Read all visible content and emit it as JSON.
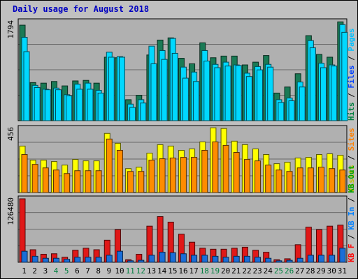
{
  "chart_data": {
    "type": "bar",
    "title": "Daily usage for August 2018",
    "categories": [
      "1",
      "2",
      "3",
      "4",
      "5",
      "6",
      "7",
      "8",
      "9",
      "10",
      "11",
      "12",
      "13",
      "14",
      "15",
      "16",
      "17",
      "18",
      "19",
      "20",
      "21",
      "22",
      "23",
      "24",
      "25",
      "26",
      "27",
      "28",
      "29",
      "30",
      "31"
    ],
    "weekend_days": [
      "4",
      "5",
      "11",
      "12",
      "18",
      "19",
      "25",
      "26"
    ],
    "panels": [
      {
        "id": "hits-files-pages",
        "max_label": "1794",
        "max": 1794,
        "right_labels": [
          {
            "text": "Hits",
            "color": "#008040"
          },
          {
            "text": " / ",
            "color": "#000000"
          },
          {
            "text": "Files",
            "color": "#0040FF"
          },
          {
            "text": " / ",
            "color": "#000000"
          },
          {
            "text": "Pages",
            "color": "#00C0FF"
          }
        ],
        "series": [
          {
            "name": "Hits",
            "color": "#1A7A55",
            "values": [
              1730,
              690,
              680,
              710,
              630,
              720,
              730,
              680,
              1150,
              1140,
              380,
              460,
              1190,
              1460,
              1500,
              1130,
              1030,
              1410,
              1140,
              1170,
              1170,
              1010,
              1060,
              1180,
              500,
              610,
              850,
              1540,
              1200,
              1150,
              1790
            ]
          },
          {
            "name": "Files",
            "color": "#00D8FF",
            "values": [
              1510,
              640,
              570,
              590,
              470,
              660,
              680,
              550,
              1240,
              1160,
              300,
              380,
              1350,
              1270,
              1490,
              970,
              880,
              1270,
              1020,
              1060,
              1010,
              860,
              980,
              1020,
              380,
              410,
              700,
              1450,
              1040,
              1010,
              1740
            ]
          },
          {
            "name": "Pages",
            "color": "#00D8FF",
            "values": [
              1250,
              600,
              560,
              560,
              450,
              570,
              570,
              500,
              1150,
              1150,
              240,
              320,
              1030,
              1110,
              1220,
              770,
              710,
              1080,
              960,
              990,
              1000,
              800,
              920,
              970,
              330,
              360,
              610,
              1320,
              960,
              990,
              1600
            ]
          }
        ]
      },
      {
        "id": "visits-sites",
        "max_label": "456",
        "max": 456,
        "right_labels": [
          {
            "text": "Visits",
            "color": "#C0C000"
          },
          {
            "text": " / ",
            "color": "#000000"
          },
          {
            "text": "Sites",
            "color": "#FF8000"
          }
        ],
        "series": [
          {
            "name": "Visits",
            "color": "#FFFF00",
            "values": [
              330,
              230,
              230,
              220,
              195,
              235,
              225,
              225,
              420,
              350,
              170,
              180,
              280,
              340,
              330,
              300,
              310,
              360,
              460,
              455,
              365,
              340,
              310,
              270,
              205,
              215,
              245,
              250,
              270,
              275,
              265
            ]
          },
          {
            "name": "Sites",
            "color": "#FF8C00",
            "values": [
              270,
              200,
              175,
              160,
              135,
              155,
              155,
              155,
              380,
              300,
              150,
              150,
              230,
              240,
              245,
              250,
              250,
              300,
              360,
              335,
              285,
              235,
              225,
              195,
              160,
              150,
              175,
              175,
              180,
              170,
              160
            ]
          }
        ]
      },
      {
        "id": "kb",
        "max_label": "126480",
        "max": 126480,
        "right_labels": [
          {
            "text": "KB F",
            "color": "#FF0000"
          },
          {
            "text": " / ",
            "color": "#000000"
          },
          {
            "text": "KB In",
            "color": "#0080FF"
          },
          {
            "text": " / ",
            "color": "#000000"
          },
          {
            "text": "KB Out",
            "color": "#00A000"
          }
        ],
        "series": [
          {
            "name": "KB F",
            "color": "#E01818",
            "values": [
              126480,
              25000,
              16000,
              17000,
              10000,
              24000,
              28000,
              25000,
              44000,
              65000,
              5000,
              16000,
              72000,
              91000,
              80000,
              56000,
              40000,
              28000,
              26000,
              26000,
              28000,
              30000,
              24000,
              20000,
              5000,
              7000,
              35000,
              70000,
              65000,
              72000,
              74000
            ]
          },
          {
            "name": "KB In",
            "color": "#1A6ED8",
            "values": [
              22000,
              12000,
              8000,
              8000,
              6000,
              10000,
              10000,
              10000,
              14000,
              22000,
              3000,
              4000,
              14000,
              20000,
              19000,
              17000,
              14000,
              14000,
              12000,
              10000,
              12000,
              12000,
              10000,
              8000,
              3000,
              4000,
              8000,
              14000,
              14000,
              14000,
              28000
            ]
          },
          {
            "name": "KB Out",
            "color": "#00C060",
            "values": [
              0,
              0,
              0,
              0,
              0,
              0,
              0,
              0,
              0,
              0,
              0,
              0,
              0,
              0,
              0,
              0,
              0,
              0,
              0,
              0,
              0,
              0,
              0,
              0,
              0,
              0,
              0,
              0,
              0,
              0,
              0
            ]
          }
        ]
      }
    ],
    "grid": true,
    "legend": "right-vertical",
    "colors": {
      "background": "#C0C0C0",
      "plot_bg": "#B0B0B0",
      "title": "#0000C0",
      "weekday_label": "#000000",
      "weekend_label": "#008040"
    }
  }
}
